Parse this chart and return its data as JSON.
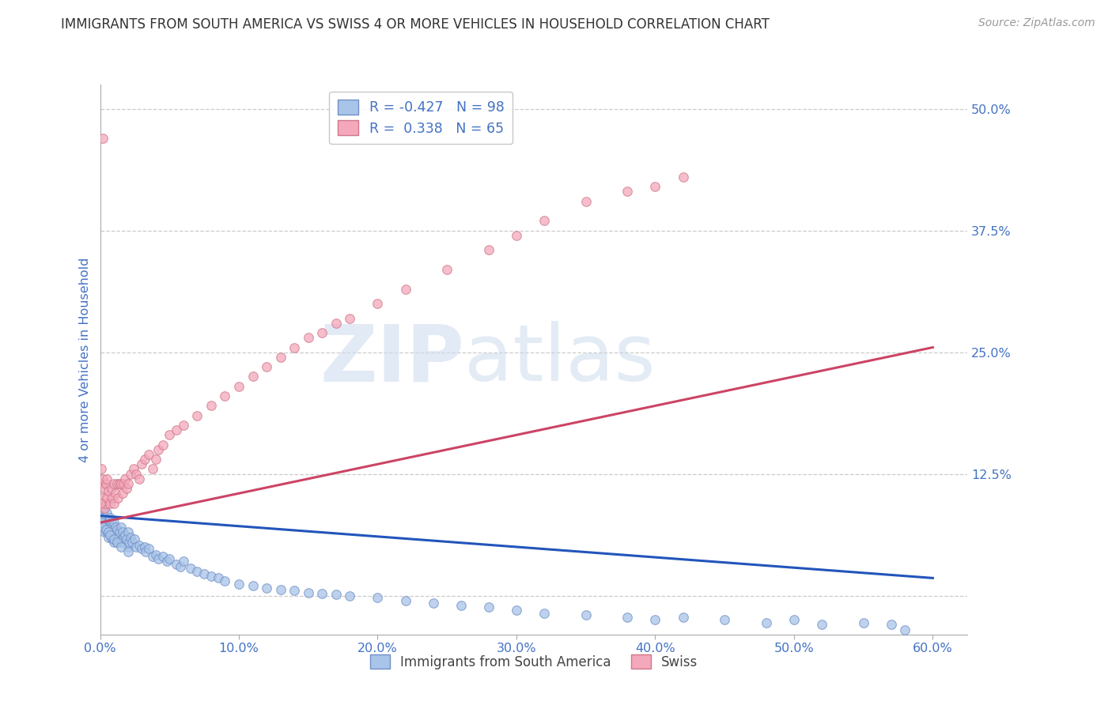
{
  "title": "IMMIGRANTS FROM SOUTH AMERICA VS SWISS 4 OR MORE VEHICLES IN HOUSEHOLD CORRELATION CHART",
  "source": "Source: ZipAtlas.com",
  "ylabel": "4 or more Vehicles in Household",
  "legend_labels": [
    "Immigrants from South America",
    "Swiss"
  ],
  "blue_R": -0.427,
  "blue_N": 98,
  "pink_R": 0.338,
  "pink_N": 65,
  "blue_color": "#a8c4e8",
  "pink_color": "#f4a8bc",
  "blue_edge_color": "#7090c8",
  "pink_edge_color": "#d07888",
  "blue_line_color": "#2255bb",
  "pink_line_color": "#cc4466",
  "title_color": "#333333",
  "axis_color": "#4472c4",
  "grid_color": "#cccccc",
  "xlim": [
    0.0,
    0.625
  ],
  "ylim": [
    -0.04,
    0.525
  ],
  "xticks": [
    0.0,
    0.1,
    0.2,
    0.3,
    0.4,
    0.5,
    0.6
  ],
  "yticks": [
    0.0,
    0.125,
    0.25,
    0.375,
    0.5
  ],
  "xtick_labels": [
    "0.0%",
    "10.0%",
    "20.0%",
    "30.0%",
    "40.0%",
    "50.0%",
    "60.0%"
  ],
  "ytick_labels": [
    "",
    "12.5%",
    "25.0%",
    "37.5%",
    "50.0%"
  ],
  "blue_scatter_x": [
    0.001,
    0.001,
    0.002,
    0.002,
    0.003,
    0.003,
    0.003,
    0.004,
    0.004,
    0.005,
    0.005,
    0.005,
    0.006,
    0.006,
    0.007,
    0.007,
    0.008,
    0.008,
    0.009,
    0.009,
    0.01,
    0.01,
    0.01,
    0.011,
    0.012,
    0.012,
    0.013,
    0.014,
    0.015,
    0.015,
    0.016,
    0.017,
    0.018,
    0.019,
    0.02,
    0.02,
    0.021,
    0.022,
    0.023,
    0.025,
    0.026,
    0.028,
    0.03,
    0.032,
    0.033,
    0.035,
    0.038,
    0.04,
    0.042,
    0.045,
    0.048,
    0.05,
    0.055,
    0.058,
    0.06,
    0.065,
    0.07,
    0.075,
    0.08,
    0.085,
    0.09,
    0.1,
    0.11,
    0.12,
    0.13,
    0.14,
    0.15,
    0.16,
    0.17,
    0.18,
    0.2,
    0.22,
    0.24,
    0.26,
    0.28,
    0.3,
    0.32,
    0.35,
    0.38,
    0.4,
    0.42,
    0.45,
    0.48,
    0.5,
    0.52,
    0.55,
    0.57,
    0.58,
    0.0,
    0.001,
    0.002,
    0.004,
    0.006,
    0.007,
    0.01,
    0.012,
    0.015,
    0.02
  ],
  "blue_scatter_y": [
    0.09,
    0.075,
    0.085,
    0.07,
    0.08,
    0.065,
    0.09,
    0.07,
    0.075,
    0.085,
    0.07,
    0.065,
    0.075,
    0.06,
    0.08,
    0.065,
    0.075,
    0.06,
    0.07,
    0.058,
    0.075,
    0.065,
    0.055,
    0.07,
    0.068,
    0.055,
    0.06,
    0.065,
    0.07,
    0.055,
    0.065,
    0.06,
    0.062,
    0.058,
    0.065,
    0.05,
    0.055,
    0.06,
    0.055,
    0.058,
    0.05,
    0.052,
    0.048,
    0.05,
    0.045,
    0.048,
    0.04,
    0.042,
    0.038,
    0.04,
    0.035,
    0.038,
    0.032,
    0.03,
    0.035,
    0.028,
    0.025,
    0.022,
    0.02,
    0.018,
    0.015,
    0.012,
    0.01,
    0.008,
    0.006,
    0.005,
    0.003,
    0.002,
    0.001,
    0.0,
    -0.002,
    -0.005,
    -0.008,
    -0.01,
    -0.012,
    -0.015,
    -0.018,
    -0.02,
    -0.022,
    -0.025,
    -0.022,
    -0.025,
    -0.028,
    -0.025,
    -0.03,
    -0.028,
    -0.03,
    -0.035,
    0.08,
    0.075,
    0.07,
    0.068,
    0.065,
    0.062,
    0.058,
    0.055,
    0.05,
    0.045
  ],
  "pink_scatter_x": [
    0.001,
    0.001,
    0.002,
    0.002,
    0.003,
    0.003,
    0.004,
    0.004,
    0.005,
    0.005,
    0.006,
    0.007,
    0.008,
    0.009,
    0.01,
    0.01,
    0.011,
    0.012,
    0.013,
    0.014,
    0.015,
    0.016,
    0.017,
    0.018,
    0.019,
    0.02,
    0.022,
    0.024,
    0.026,
    0.028,
    0.03,
    0.032,
    0.035,
    0.038,
    0.04,
    0.042,
    0.045,
    0.05,
    0.055,
    0.06,
    0.07,
    0.08,
    0.09,
    0.1,
    0.11,
    0.12,
    0.13,
    0.14,
    0.15,
    0.16,
    0.17,
    0.18,
    0.2,
    0.22,
    0.25,
    0.28,
    0.3,
    0.32,
    0.35,
    0.38,
    0.4,
    0.42,
    0.0,
    0.001,
    0.002
  ],
  "pink_scatter_y": [
    0.115,
    0.095,
    0.12,
    0.1,
    0.11,
    0.09,
    0.115,
    0.095,
    0.12,
    0.1,
    0.108,
    0.095,
    0.11,
    0.1,
    0.115,
    0.095,
    0.105,
    0.115,
    0.1,
    0.115,
    0.115,
    0.105,
    0.115,
    0.12,
    0.11,
    0.115,
    0.125,
    0.13,
    0.125,
    0.12,
    0.135,
    0.14,
    0.145,
    0.13,
    0.14,
    0.15,
    0.155,
    0.165,
    0.17,
    0.175,
    0.185,
    0.195,
    0.205,
    0.215,
    0.225,
    0.235,
    0.245,
    0.255,
    0.265,
    0.27,
    0.28,
    0.285,
    0.3,
    0.315,
    0.335,
    0.355,
    0.37,
    0.385,
    0.405,
    0.415,
    0.42,
    0.43,
    0.095,
    0.13,
    0.47
  ],
  "blue_line_x": [
    0.0,
    0.6
  ],
  "blue_line_y": [
    0.082,
    0.018
  ],
  "pink_line_x": [
    0.0,
    0.6
  ],
  "pink_line_y": [
    0.075,
    0.255
  ]
}
